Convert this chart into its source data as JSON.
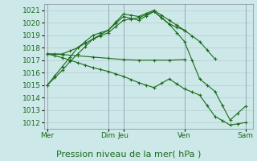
{
  "background_color": "#cce8e8",
  "grid_color": "#bbcccc",
  "line_color": "#1a6b1a",
  "xlabel": "Pression niveau de la mer( hPa )",
  "xlabel_fontsize": 8,
  "tick_fontsize": 6.5,
  "ylim": [
    1011.5,
    1021.5
  ],
  "yticks": [
    1012,
    1013,
    1014,
    1015,
    1016,
    1017,
    1018,
    1019,
    1020,
    1021
  ],
  "xtick_labels": [
    "Mer",
    "Dim",
    "Jeu",
    "Ven",
    "Sam"
  ],
  "xtick_positions": [
    0,
    4,
    5,
    9,
    13
  ],
  "vlines": [
    0,
    4,
    5,
    9,
    13
  ],
  "xlim": [
    -0.2,
    13.5
  ],
  "series": [
    {
      "x": [
        0,
        0.5,
        1,
        1.5,
        2,
        2.5,
        3,
        3.5,
        4,
        4.5,
        5,
        5.5,
        6,
        6.5,
        7,
        7.5,
        8,
        8.5,
        9,
        9.5,
        10,
        10.5,
        11
      ],
      "y": [
        1015.0,
        1015.6,
        1016.2,
        1016.9,
        1017.5,
        1018.1,
        1018.7,
        1019.05,
        1019.4,
        1020.05,
        1020.7,
        1020.6,
        1020.5,
        1020.75,
        1021.0,
        1020.6,
        1020.2,
        1019.8,
        1019.4,
        1018.95,
        1018.5,
        1017.8,
        1017.1
      ]
    },
    {
      "x": [
        0,
        0.5,
        1,
        1.5,
        2,
        2.5,
        3,
        3.5,
        4,
        4.5,
        5,
        5.5,
        6,
        6.5,
        7,
        7.5,
        8,
        8.5,
        9
      ],
      "y": [
        1017.5,
        1017.5,
        1017.5,
        1017.75,
        1018.0,
        1018.35,
        1018.7,
        1018.95,
        1019.2,
        1019.7,
        1020.2,
        1020.3,
        1020.4,
        1020.65,
        1020.9,
        1020.4,
        1019.9,
        1019.65,
        1019.4
      ]
    },
    {
      "x": [
        0,
        1,
        2,
        3,
        4,
        5,
        6,
        7,
        8,
        9
      ],
      "y": [
        1017.5,
        1017.45,
        1017.35,
        1017.25,
        1017.15,
        1017.05,
        1017.0,
        1017.0,
        1017.0,
        1017.05
      ]
    },
    {
      "x": [
        0,
        0.5,
        1,
        1.5,
        2,
        2.5,
        3,
        3.5,
        4,
        4.5,
        5,
        5.5,
        6,
        6.5,
        7,
        7.5,
        8,
        8.5,
        9,
        9.5,
        10,
        10.5,
        11,
        11.5,
        12,
        12.5,
        13
      ],
      "y": [
        1017.5,
        1017.35,
        1017.2,
        1017.0,
        1016.8,
        1016.6,
        1016.4,
        1016.25,
        1016.1,
        1015.9,
        1015.7,
        1015.45,
        1015.2,
        1015.0,
        1014.8,
        1015.15,
        1015.5,
        1015.1,
        1014.7,
        1014.45,
        1014.2,
        1013.35,
        1012.5,
        1012.15,
        1011.8,
        1011.9,
        1012.0
      ]
    },
    {
      "x": [
        0,
        0.5,
        1,
        1.5,
        2,
        2.5,
        3,
        3.5,
        4,
        4.5,
        5,
        5.5,
        6,
        6.5,
        7,
        7.5,
        8,
        8.5,
        9,
        9.5,
        10,
        10.5,
        11,
        11.5,
        12,
        12.5,
        13
      ],
      "y": [
        1015.0,
        1015.75,
        1016.5,
        1017.25,
        1018.0,
        1018.5,
        1019.0,
        1019.2,
        1019.4,
        1019.95,
        1020.5,
        1020.35,
        1020.2,
        1020.55,
        1020.9,
        1020.4,
        1019.9,
        1019.2,
        1018.5,
        1017.0,
        1015.5,
        1015.0,
        1014.5,
        1013.35,
        1012.2,
        1012.75,
        1013.3
      ]
    }
  ]
}
